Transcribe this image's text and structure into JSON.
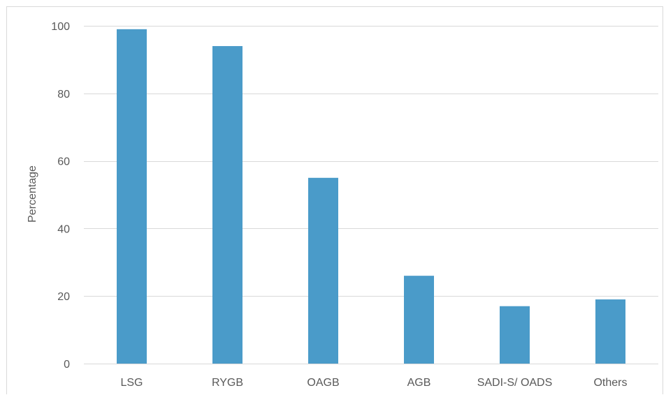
{
  "chart_data": {
    "type": "bar",
    "title": "",
    "xlabel": "",
    "ylabel": "Percentage",
    "categories": [
      "LSG",
      "RYGB",
      "OAGB",
      "AGB",
      "SADI-S/ OADS",
      "Others"
    ],
    "values": [
      99,
      94,
      55,
      26,
      17,
      19
    ],
    "ylim": [
      0,
      100
    ],
    "yticks": [
      0,
      20,
      40,
      60,
      80,
      100
    ],
    "grid": true,
    "legend": "none",
    "bar_color": "#4a9bc9"
  }
}
